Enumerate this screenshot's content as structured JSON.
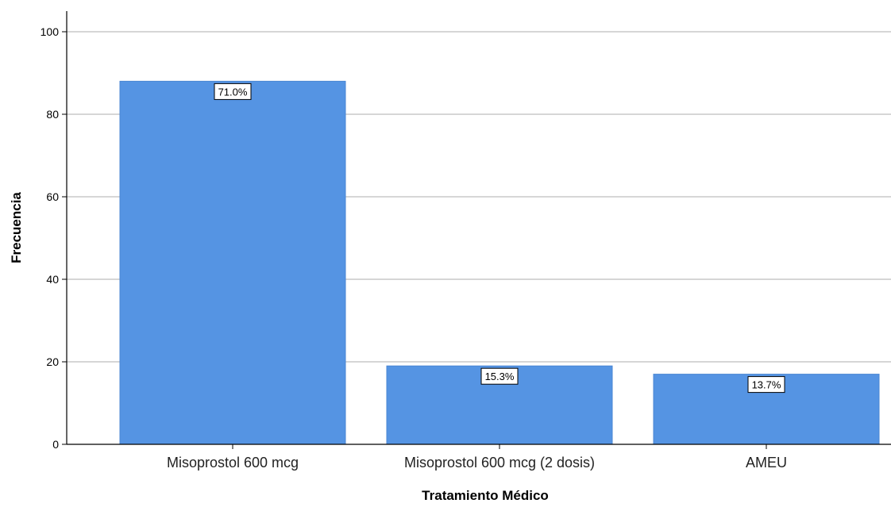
{
  "chart_data": {
    "type": "bar",
    "categories": [
      "Misoprostol 600 mcg",
      "Misoprostol 600 mcg (2 dosis)",
      "AMEU"
    ],
    "values": [
      88,
      19,
      17
    ],
    "data_labels": [
      "71.0%",
      "15.3%",
      "13.7%"
    ],
    "xlabel": "Tratamiento Médico",
    "ylabel": "Frecuencia",
    "ylim": [
      0,
      105
    ],
    "yticks": [
      0,
      20,
      40,
      60,
      80,
      100
    ],
    "grid": true,
    "legend": "none",
    "colors": {
      "bar": "#5594e3",
      "bar_edge": "#4a86d3",
      "grid": "#c9c9c9",
      "axis": "#000000",
      "text": "#000000"
    }
  }
}
